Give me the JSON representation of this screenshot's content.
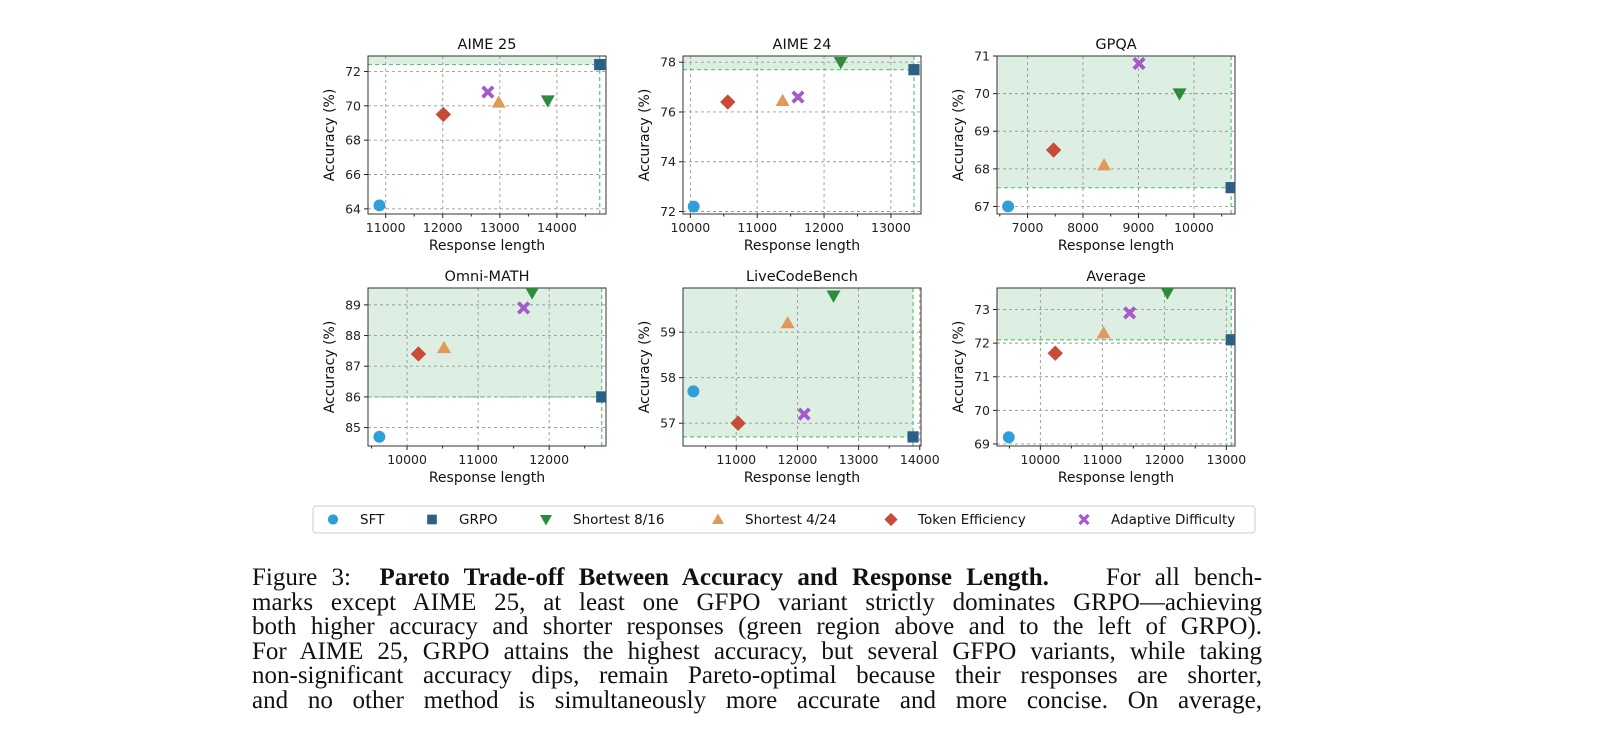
{
  "colors": {
    "SFT": "#2e9fd9",
    "GRPO": "#2b5f85",
    "Shortest 8/16": "#2e8b3a",
    "Shortest 4/24": "#e0995a",
    "Token Efficiency": "#c84b3a",
    "Adaptive Difficulty": "#a45bc9",
    "pareto_fill": "#dcefe2",
    "pareto_line": "#5cc47a"
  },
  "legend": {
    "position": "bottom-center",
    "items": [
      {
        "label": "SFT",
        "marker": "circle"
      },
      {
        "label": "GRPO",
        "marker": "square"
      },
      {
        "label": "Shortest 8/16",
        "marker": "triangle-down"
      },
      {
        "label": "Shortest 4/24",
        "marker": "triangle-up"
      },
      {
        "label": "Token Efficiency",
        "marker": "diamond"
      },
      {
        "label": "Adaptive Difficulty",
        "marker": "x"
      }
    ]
  },
  "chart_data": [
    {
      "type": "scatter",
      "title": "AIME 25",
      "xlabel": "Response length",
      "ylabel": "Accuracy (%)",
      "grid": true,
      "xlim": [
        10690,
        14860
      ],
      "ylim": [
        63.7,
        72.9
      ],
      "xticks": [
        11000,
        12000,
        13000,
        14000
      ],
      "yticks": [
        64,
        66,
        68,
        70,
        72
      ],
      "points": {
        "SFT": [
          10890,
          64.2
        ],
        "GRPO": [
          14750,
          72.4
        ],
        "Shortest 8/16": [
          13840,
          70.3
        ],
        "Shortest 4/24": [
          12980,
          70.2
        ],
        "Token Efficiency": [
          12010,
          69.5
        ],
        "Adaptive Difficulty": [
          12790,
          70.8
        ]
      }
    },
    {
      "type": "scatter",
      "title": "AIME 24",
      "xlabel": "Response length",
      "ylabel": "Accuracy (%)",
      "grid": true,
      "xlim": [
        9890,
        13450
      ],
      "ylim": [
        71.9,
        78.25
      ],
      "xticks": [
        10000,
        11000,
        12000,
        13000
      ],
      "yticks": [
        72,
        74,
        76,
        78
      ],
      "points": {
        "SFT": [
          10050,
          72.2
        ],
        "GRPO": [
          13345,
          77.7
        ],
        "Shortest 8/16": [
          12250,
          78.0
        ],
        "Shortest 4/24": [
          11380,
          76.45
        ],
        "Token Efficiency": [
          10560,
          76.4
        ],
        "Adaptive Difficulty": [
          11610,
          76.6
        ]
      }
    },
    {
      "type": "scatter",
      "title": "GPQA",
      "xlabel": "Response length",
      "ylabel": "Accuracy (%)",
      "grid": true,
      "xlim": [
        6450,
        10740
      ],
      "ylim": [
        66.8,
        71.0
      ],
      "xticks": [
        7000,
        8000,
        9000,
        10000
      ],
      "yticks": [
        67,
        68,
        69,
        70,
        71
      ],
      "points": {
        "SFT": [
          6650,
          67.0
        ],
        "GRPO": [
          10670,
          67.5
        ],
        "Shortest 8/16": [
          9740,
          70.0
        ],
        "Shortest 4/24": [
          8380,
          68.1
        ],
        "Token Efficiency": [
          7470,
          68.5
        ],
        "Adaptive Difficulty": [
          9010,
          70.8
        ]
      }
    },
    {
      "type": "scatter",
      "title": "Omni-MATH",
      "xlabel": "Response length",
      "ylabel": "Accuracy (%)",
      "grid": true,
      "xlim": [
        9450,
        12800
      ],
      "ylim": [
        84.4,
        89.55
      ],
      "xticks": [
        10000,
        11000,
        12000
      ],
      "yticks": [
        85,
        86,
        87,
        88,
        89
      ],
      "points": {
        "SFT": [
          9610,
          84.7
        ],
        "GRPO": [
          12740,
          86.0
        ],
        "Shortest 8/16": [
          11760,
          89.4
        ],
        "Shortest 4/24": [
          10520,
          87.6
        ],
        "Token Efficiency": [
          10160,
          87.4
        ],
        "Adaptive Difficulty": [
          11640,
          88.9
        ]
      }
    },
    {
      "type": "scatter",
      "title": "LiveCodeBench",
      "xlabel": "Response length",
      "ylabel": "Accuracy (%)",
      "grid": true,
      "xlim": [
        10130,
        14020
      ],
      "ylim": [
        56.5,
        59.97
      ],
      "xticks": [
        11000,
        12000,
        13000,
        14000
      ],
      "yticks": [
        57,
        58,
        59
      ],
      "points": {
        "SFT": [
          10300,
          57.7
        ],
        "GRPO": [
          13890,
          56.7
        ],
        "Shortest 8/16": [
          12590,
          59.8
        ],
        "Shortest 4/24": [
          11840,
          59.2
        ],
        "Token Efficiency": [
          11030,
          57.0
        ],
        "Adaptive Difficulty": [
          12110,
          57.2
        ]
      }
    },
    {
      "type": "scatter",
      "title": "Average",
      "xlabel": "Response length",
      "ylabel": "Accuracy (%)",
      "grid": true,
      "xlim": [
        9300,
        13140
      ],
      "ylim": [
        68.94,
        73.64
      ],
      "xticks": [
        10000,
        11000,
        12000,
        13000
      ],
      "yticks": [
        69,
        70,
        71,
        72,
        73
      ],
      "points": {
        "SFT": [
          9490,
          69.2
        ],
        "GRPO": [
          13080,
          72.1
        ],
        "Shortest 8/16": [
          12050,
          73.5
        ],
        "Shortest 4/24": [
          11020,
          72.3
        ],
        "Token Efficiency": [
          10240,
          71.7
        ],
        "Adaptive Difficulty": [
          11440,
          72.9
        ]
      }
    }
  ],
  "caption": {
    "label": "Figure 3:",
    "bold_title": "Pareto Trade-off Between Accuracy and Response Length.",
    "first_line_rest": "For all bench-",
    "lines": [
      "marks except AIME 25, at least one GFPO variant strictly dominates GRPO—achieving",
      "both higher accuracy and shorter responses (green region above and to the left of GRPO).",
      "For AIME 25, GRPO attains the highest accuracy, but several GFPO variants, while taking",
      "non-significant accuracy dips, remain Pareto-optimal because their responses are shorter,",
      "and no other method is simultaneously more accurate and more concise. On average,"
    ]
  }
}
